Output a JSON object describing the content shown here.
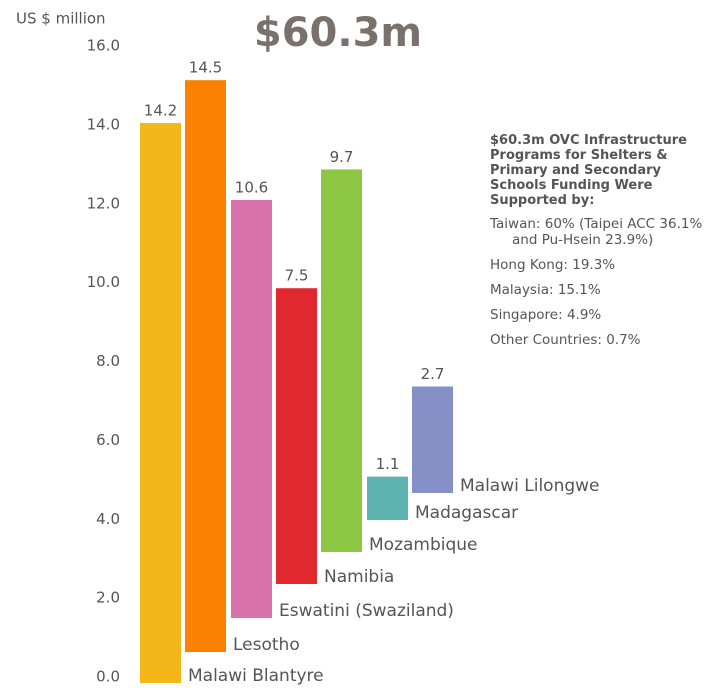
{
  "chart_data": {
    "type": "bar",
    "title": "$60.3m",
    "y_label": "US $ million",
    "categories": [
      "Malawi Blantyre",
      "Lesotho",
      "Eswatini (Swaziland)",
      "Namibia",
      "Mozambique",
      "Madagascar",
      "Malawi Lilongwe"
    ],
    "values": [
      14.2,
      14.5,
      10.6,
      7.5,
      9.7,
      1.1,
      2.7
    ],
    "colors": [
      "#f4b71a",
      "#fb8200",
      "#d872ad",
      "#e2282f",
      "#8dc642",
      "#5db3b0",
      "#8590c6"
    ],
    "ylim": [
      0,
      16
    ],
    "yticks": [
      {
        "value": 0,
        "label": "0.0"
      },
      {
        "value": 2,
        "label": "2.0"
      },
      {
        "value": 4,
        "label": "4.0"
      },
      {
        "value": 6,
        "label": "6.0"
      },
      {
        "value": 8,
        "label": "8.0"
      },
      {
        "value": 10,
        "label": "10.0"
      },
      {
        "value": 12,
        "label": "12.0"
      },
      {
        "value": 14,
        "label": "14.0"
      },
      {
        "value": 16,
        "label": "16.0"
      }
    ],
    "side_note": {
      "title": "$60.3m OVC Infrastructure Programs for Shelters & Primary and Secondary Schools Funding Were Supported by:",
      "items": [
        "Taiwan: 60% (Taipei ACC 36.1% and Pu-Hsein 23.9%)",
        "Hong Kong: 19.3%",
        "Malaysia: 15.1%",
        "Singapore: 4.9%",
        "Other Countries: 0.7%"
      ]
    }
  }
}
